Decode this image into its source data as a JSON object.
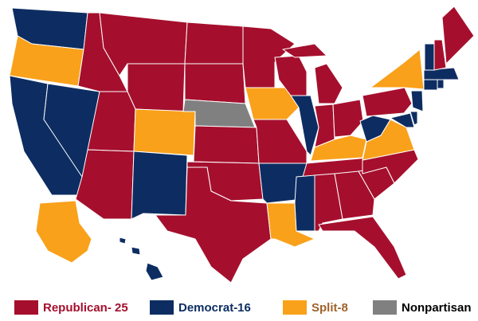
{
  "legend": [
    {
      "label": "Republican- 25",
      "color": "#a50f2d",
      "text_color": "#a50f2d"
    },
    {
      "label": "Democrat-16",
      "color": "#0d2d62",
      "text_color": "#0d2d62"
    },
    {
      "label": "Split-8",
      "color": "#f9a11b",
      "text_color": "#a0622a"
    },
    {
      "label": "Nonpartisan",
      "color": "#808080",
      "text_color": "#000000"
    }
  ]
}
